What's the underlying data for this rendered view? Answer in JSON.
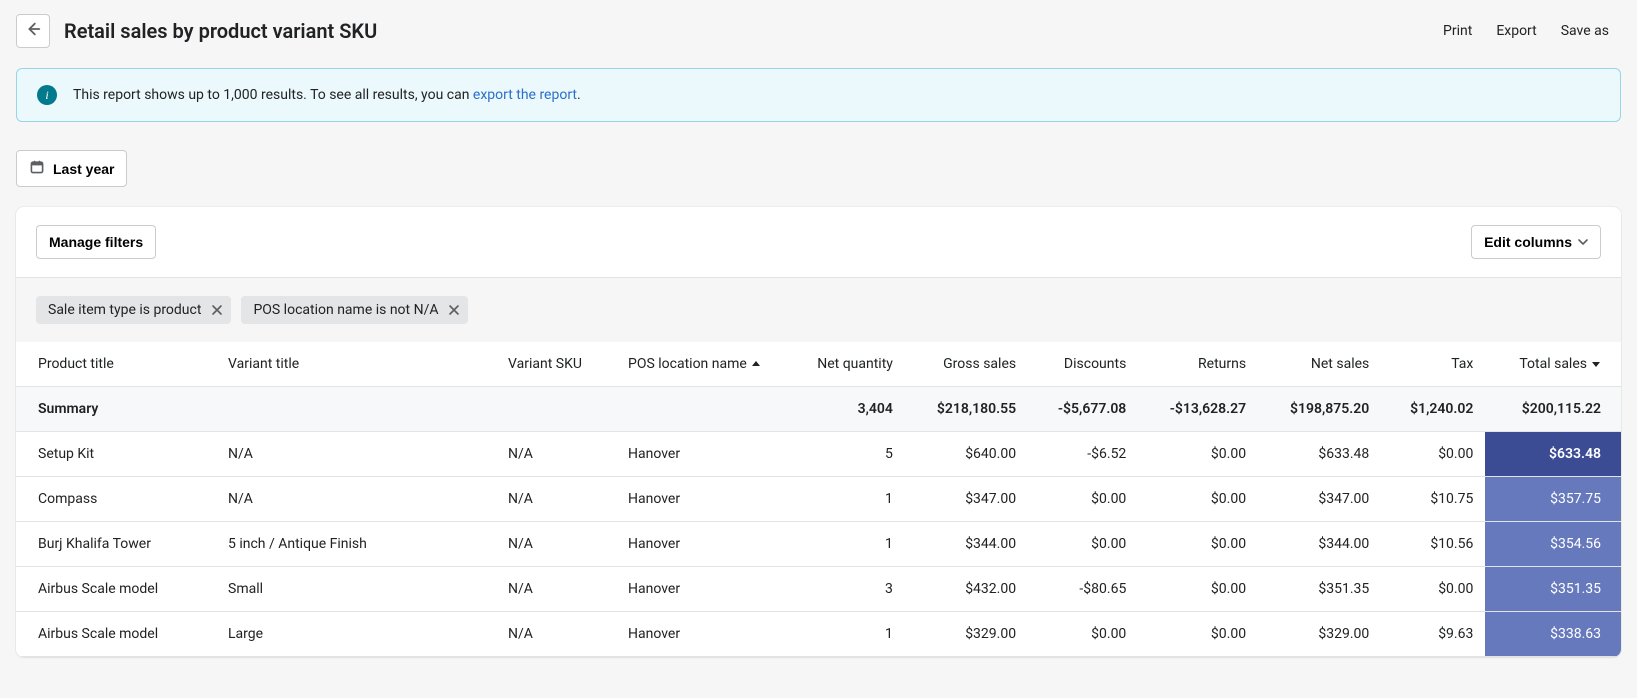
{
  "header": {
    "title": "Retail sales by product variant SKU",
    "actions": {
      "print": "Print",
      "export": "Export",
      "save_as": "Save as"
    }
  },
  "banner": {
    "text_before": "This report shows up to 1,000 results. To see all results, you can ",
    "link_text": "export the report",
    "text_after": "."
  },
  "date_filter": {
    "label": "Last year"
  },
  "toolbar": {
    "manage_filters": "Manage filters",
    "edit_columns": "Edit columns"
  },
  "filter_chips": [
    "Sale item type is product",
    "POS location name is not N/A"
  ],
  "table": {
    "columns": [
      {
        "key": "product_title",
        "label": "Product title",
        "align": "left"
      },
      {
        "key": "variant_title",
        "label": "Variant title",
        "align": "left"
      },
      {
        "key": "variant_sku",
        "label": "Variant SKU",
        "align": "left"
      },
      {
        "key": "pos_location",
        "label": "POS location name",
        "align": "left",
        "sort": "asc"
      },
      {
        "key": "net_qty",
        "label": "Net quantity",
        "align": "right"
      },
      {
        "key": "gross_sales",
        "label": "Gross sales",
        "align": "right"
      },
      {
        "key": "discounts",
        "label": "Discounts",
        "align": "right"
      },
      {
        "key": "returns",
        "label": "Returns",
        "align": "right"
      },
      {
        "key": "net_sales",
        "label": "Net sales",
        "align": "right"
      },
      {
        "key": "tax",
        "label": "Tax",
        "align": "right"
      },
      {
        "key": "total_sales",
        "label": "Total sales",
        "align": "right",
        "sort": "desc"
      }
    ],
    "summary_label": "Summary",
    "summary": {
      "net_qty": "3,404",
      "gross_sales": "$218,180.55",
      "discounts": "-$5,677.08",
      "returns": "-$13,628.27",
      "net_sales": "$198,875.20",
      "tax": "$1,240.02",
      "total_sales": "$200,115.22"
    },
    "rows": [
      {
        "product_title": "Setup Kit",
        "variant_title": "N/A",
        "variant_sku": "N/A",
        "pos_location": "Hanover",
        "net_qty": "5",
        "gross_sales": "$640.00",
        "discounts": "-$6.52",
        "returns": "$0.00",
        "net_sales": "$633.48",
        "tax": "$0.00",
        "total_sales": "$633.48",
        "highlight": "dark"
      },
      {
        "product_title": "Compass",
        "variant_title": "N/A",
        "variant_sku": "N/A",
        "pos_location": "Hanover",
        "net_qty": "1",
        "gross_sales": "$347.00",
        "discounts": "$0.00",
        "returns": "$0.00",
        "net_sales": "$347.00",
        "tax": "$10.75",
        "total_sales": "$357.75",
        "highlight": "mid"
      },
      {
        "product_title": "Burj Khalifa Tower",
        "variant_title": "5 inch / Antique Finish",
        "variant_sku": "N/A",
        "pos_location": "Hanover",
        "net_qty": "1",
        "gross_sales": "$344.00",
        "discounts": "$0.00",
        "returns": "$0.00",
        "net_sales": "$344.00",
        "tax": "$10.56",
        "total_sales": "$354.56",
        "highlight": "mid"
      },
      {
        "product_title": "Airbus Scale model",
        "variant_title": "Small",
        "variant_sku": "N/A",
        "pos_location": "Hanover",
        "net_qty": "3",
        "gross_sales": "$432.00",
        "discounts": "-$80.65",
        "returns": "$0.00",
        "net_sales": "$351.35",
        "tax": "$0.00",
        "total_sales": "$351.35",
        "highlight": "mid"
      },
      {
        "product_title": "Airbus Scale model",
        "variant_title": "Large",
        "variant_sku": "N/A",
        "pos_location": "Hanover",
        "net_qty": "1",
        "gross_sales": "$329.00",
        "discounts": "$0.00",
        "returns": "$0.00",
        "net_sales": "$329.00",
        "tax": "$9.63",
        "total_sales": "$338.63",
        "highlight": "mid"
      }
    ],
    "highlight_colors": {
      "dark": "#3c4c94",
      "mid": "#6779bd"
    }
  }
}
